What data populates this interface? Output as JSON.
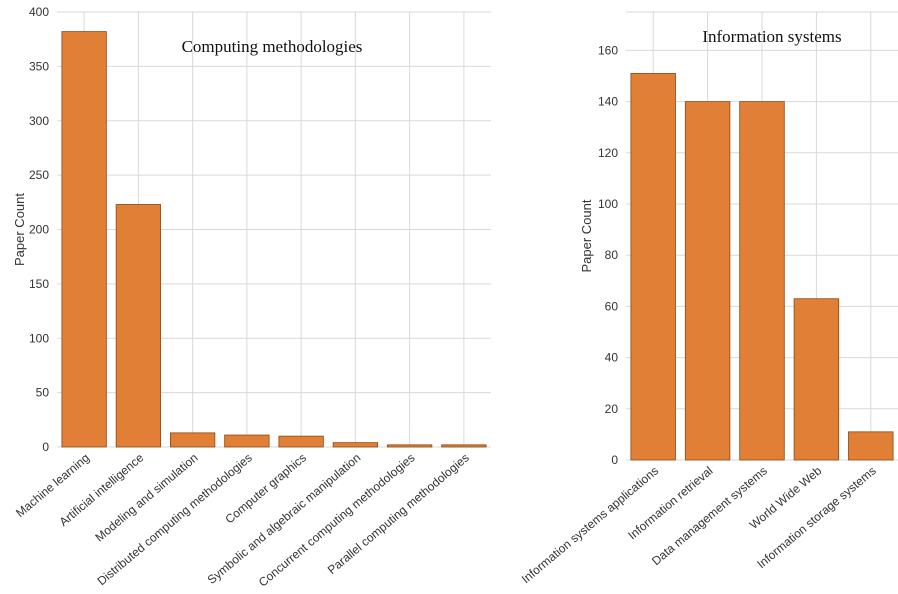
{
  "chart_data": [
    {
      "type": "bar",
      "title": "Computing methodologies",
      "xlabel": "",
      "ylabel": "Paper Count",
      "ylim": [
        0,
        400
      ],
      "yticks": [
        0,
        50,
        100,
        150,
        200,
        250,
        300,
        350,
        400
      ],
      "grid": true,
      "bar_color": "#e07f35",
      "categories": [
        "Machine learning",
        "Artificial intelligence",
        "Modeling and simulation",
        "Distributed computing methodologies",
        "Computer graphics",
        "Symbolic and algebraic manipulation",
        "Concurrent computing methodologies",
        "Parallel computing methodologies"
      ],
      "values": [
        382,
        223,
        13,
        11,
        10,
        4,
        2,
        2
      ]
    },
    {
      "type": "bar",
      "title": "Information systems",
      "xlabel": "",
      "ylabel": "Paper Count",
      "ylim": [
        0,
        175
      ],
      "yticks": [
        0,
        20,
        40,
        60,
        80,
        100,
        120,
        140,
        160
      ],
      "grid": true,
      "bar_color": "#e07f35",
      "categories": [
        "Information systems applications",
        "Information retrieval",
        "Data management systems",
        "World Wide Web",
        "Information storage systems"
      ],
      "values": [
        151,
        140,
        140,
        63,
        11
      ]
    }
  ]
}
